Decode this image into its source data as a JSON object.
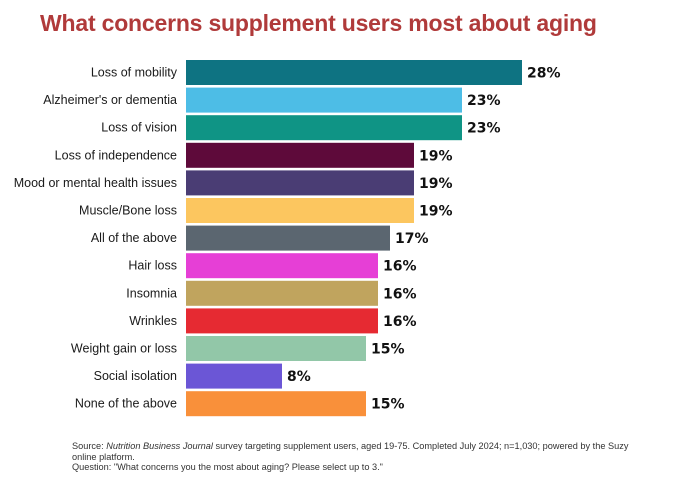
{
  "chart_data": {
    "type": "bar",
    "orientation": "horizontal",
    "title": "What concerns supplement users most about aging",
    "categories": [
      "Loss of mobility",
      "Alzheimer's or dementia",
      "Loss of vision",
      "Loss of independence",
      "Mood or mental health issues",
      "Muscle/Bone loss",
      "All of the above",
      "Hair loss",
      "Insomnia",
      "Wrinkles",
      "Weight gain or loss",
      "Social isolation",
      "None of the above"
    ],
    "values": [
      28,
      23,
      23,
      19,
      19,
      19,
      17,
      16,
      16,
      16,
      15,
      8,
      15
    ],
    "value_labels": [
      "28%",
      "23%",
      "23%",
      "19%",
      "19%",
      "19%",
      "17%",
      "16%",
      "16%",
      "16%",
      "15%",
      "8%",
      "15%"
    ],
    "colors": [
      "#0e7382",
      "#4dbde6",
      "#0f9485",
      "#5e0a3a",
      "#4a3d74",
      "#fcc65f",
      "#5b6670",
      "#e63fd6",
      "#c0a45e",
      "#e62a32",
      "#92c7a8",
      "#6b56d6",
      "#f9903a"
    ],
    "xlabel": "",
    "ylabel": "",
    "xlim": [
      0,
      28
    ],
    "grid": false,
    "legend": "none"
  },
  "footnote": {
    "source_prefix": "Source: ",
    "source_publication": "Nutrition Business Journal",
    "source_rest": " survey targeting supplement users, aged 19-75. Completed July 2024;  n=1,030; powered by the Suzy online platform.",
    "question": "Question: \"What concerns you the most about aging? Please select up to 3.\""
  }
}
